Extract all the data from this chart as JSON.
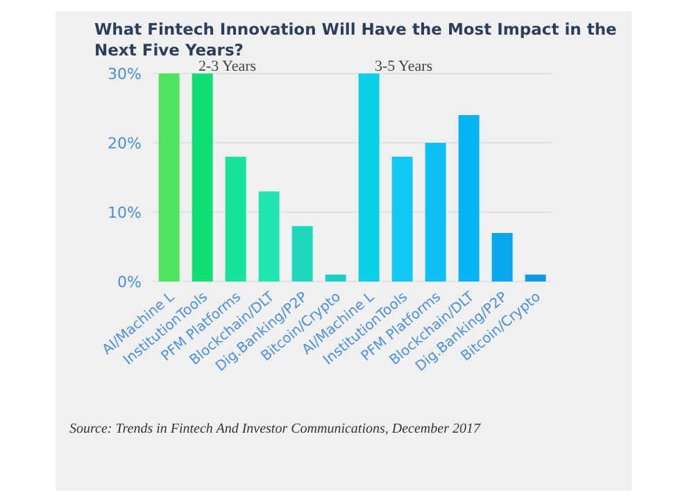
{
  "chart_data": {
    "type": "bar",
    "title": "What Fintech Innovation Will Have the Most Impact in the Next Five Years?",
    "categories": [
      "AI/Machine L",
      "InstitutionTools",
      "PFM Platforms",
      "Blockchain/DLT",
      "Dig.Banking/P2P",
      "Bitcoin/Crypto",
      "AI/Machine L",
      "InstitutionTools",
      "PFM Platforms",
      "Blockchain/DLT",
      "Dig.Banking/P2P",
      "Bitcoin/Crypto"
    ],
    "values": [
      30,
      30,
      18,
      13,
      8,
      1,
      30,
      18,
      20,
      24,
      7,
      1
    ],
    "colors": [
      "#4fe35f",
      "#12df72",
      "#17e39a",
      "#23e5b0",
      "#1ed9bc",
      "#1ad1c8",
      "#08d0e8",
      "#11c8f0",
      "#0dbff5",
      "#05b4f5",
      "#08a8ee",
      "#0a9ce8"
    ],
    "ylim": [
      0,
      30
    ],
    "yticks": [
      {
        "value": 0,
        "label": "0%"
      },
      {
        "value": 10,
        "label": "10%"
      },
      {
        "value": 20,
        "label": "20%"
      },
      {
        "value": 30,
        "label": "30%"
      }
    ],
    "grid": "y",
    "annotations": [
      "2-3 Years",
      "3-5 Years",
      "Source: Trends in Fintech And Investor Communications, December 2017"
    ]
  }
}
